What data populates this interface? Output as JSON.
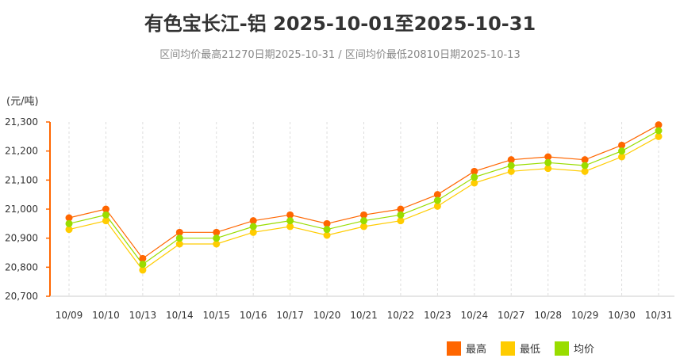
{
  "title": "有色宝长江-铝 2025-10-01至2025-10-31",
  "subtitle": "区间均价最高21270日期2025-10-31 / 区间均价最低20810日期2025-10-13",
  "chart_data": {
    "type": "line",
    "ylabel": "(元/吨)",
    "ylim": [
      20700,
      21300
    ],
    "yticks": [
      20700,
      20800,
      20900,
      21000,
      21100,
      21200,
      21300
    ],
    "ytick_labels": [
      "20,700",
      "20,800",
      "20,900",
      "21,000",
      "21,100",
      "21,200",
      "21,300"
    ],
    "categories": [
      "10/09",
      "10/10",
      "10/13",
      "10/14",
      "10/15",
      "10/16",
      "10/17",
      "10/20",
      "10/21",
      "10/22",
      "10/23",
      "10/24",
      "10/27",
      "10/28",
      "10/29",
      "10/30",
      "10/31"
    ],
    "series": [
      {
        "name": "最高",
        "color": "#ff6600",
        "values": [
          20970,
          21000,
          20830,
          20920,
          20920,
          20960,
          20980,
          20950,
          20980,
          21000,
          21050,
          21130,
          21170,
          21180,
          21170,
          21220,
          21290
        ]
      },
      {
        "name": "最低",
        "color": "#ffcc00",
        "values": [
          20930,
          20960,
          20790,
          20880,
          20880,
          20920,
          20940,
          20910,
          20940,
          20960,
          21010,
          21090,
          21130,
          21140,
          21130,
          21180,
          21250
        ]
      },
      {
        "name": "均价",
        "color": "#99dd00",
        "values": [
          20950,
          20980,
          20810,
          20900,
          20900,
          20940,
          20960,
          20930,
          20960,
          20980,
          21030,
          21110,
          21150,
          21160,
          21150,
          21200,
          21270
        ]
      }
    ],
    "grid": "vertical-dashed",
    "legend_position": "bottom-right"
  }
}
